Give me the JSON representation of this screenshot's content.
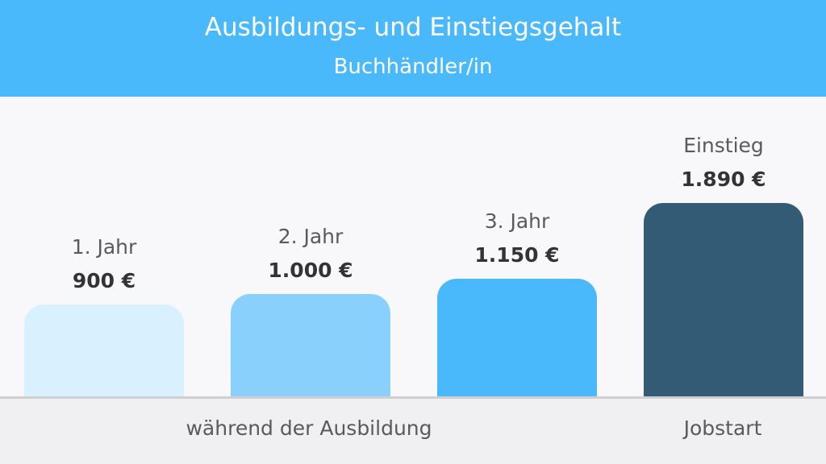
{
  "header": {
    "title": "Ausbildungs- und Einstiegsgehalt",
    "subtitle": "Buchhändler/in"
  },
  "footer": {
    "training_label": "während der Ausbildung",
    "jobstart_label": "Jobstart"
  },
  "chart_data": {
    "type": "bar",
    "title": "Ausbildungs- und Einstiegsgehalt",
    "subtitle": "Buchhändler/in",
    "categories": [
      "1. Jahr",
      "2. Jahr",
      "3. Jahr",
      "Einstieg"
    ],
    "values": [
      900,
      1000,
      1150,
      1890
    ],
    "value_labels": [
      "900 €",
      "1.000 €",
      "1.150 €",
      "1.890 €"
    ],
    "colors": [
      "#d9f0fe",
      "#8ad0fc",
      "#4ab9fb",
      "#345b75"
    ],
    "groups": [
      "während der Ausbildung",
      "Jobstart"
    ],
    "grid": false
  }
}
